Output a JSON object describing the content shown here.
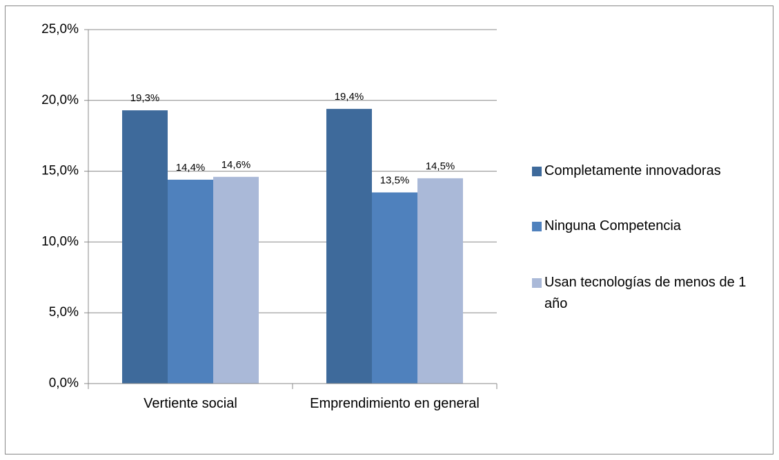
{
  "chart_data": {
    "type": "bar",
    "categories": [
      "Vertiente social",
      "Emprendimiento en general"
    ],
    "series": [
      {
        "name": "Completamente innovadoras",
        "color": "#3e6a9b",
        "values": [
          19.3,
          19.4
        ],
        "value_labels": [
          "19,3%",
          "19,4%"
        ]
      },
      {
        "name": "Ninguna Competencia",
        "color": "#4f81bd",
        "values": [
          14.4,
          13.5
        ],
        "value_labels": [
          "14,4%",
          "13,5%"
        ]
      },
      {
        "name": "Usan tecnologías de menos de 1 año",
        "color": "#aab9d8",
        "values": [
          14.6,
          14.5
        ],
        "value_labels": [
          "14,6%",
          "14,5%"
        ]
      }
    ],
    "ylim": [
      0,
      25
    ],
    "yticks": [
      {
        "value": 0,
        "label": "0,0%"
      },
      {
        "value": 5,
        "label": "5,0%"
      },
      {
        "value": 10,
        "label": "10,0%"
      },
      {
        "value": 15,
        "label": "15,0%"
      },
      {
        "value": 20,
        "label": "20,0%"
      },
      {
        "value": 25,
        "label": "25,0%"
      }
    ],
    "grid": true,
    "legend": "right"
  }
}
